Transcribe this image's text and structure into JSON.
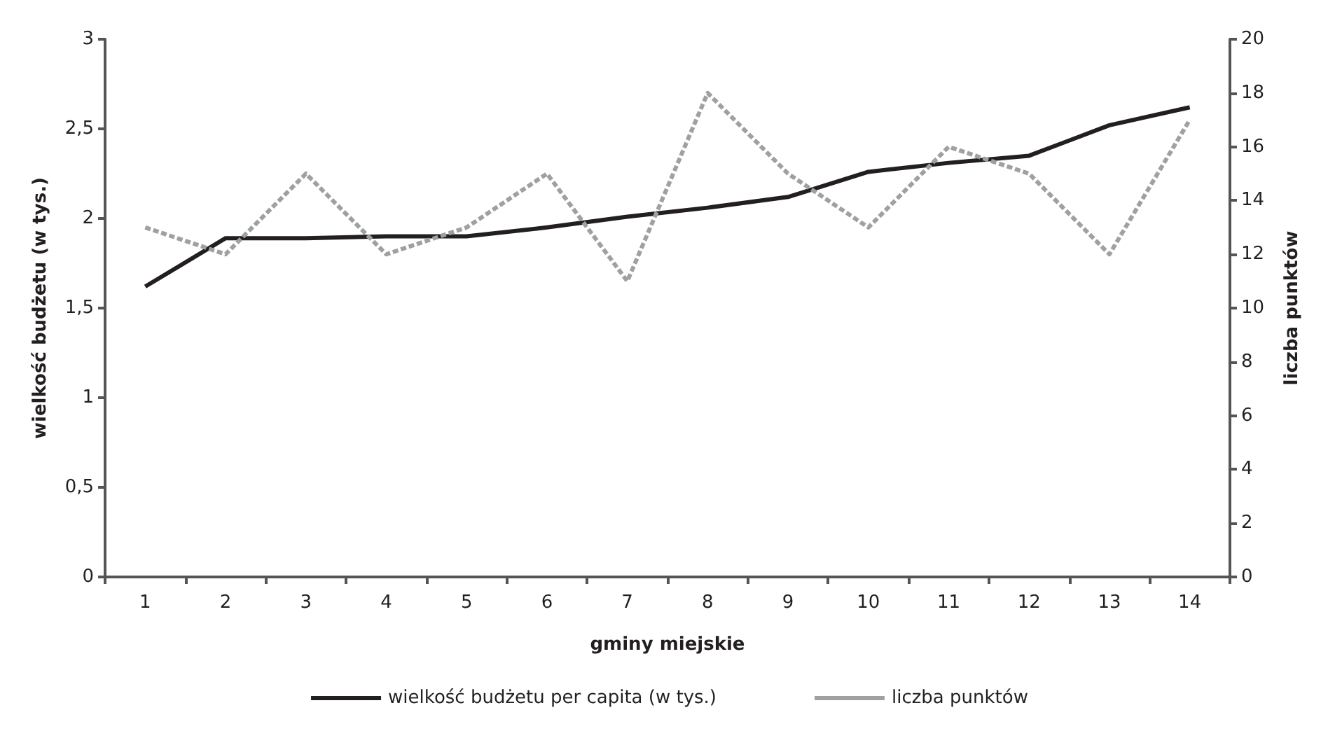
{
  "chart_data": {
    "type": "line",
    "xlabel": "gminy miejskie",
    "ylabel": "wielkość budżetu (w tys.)",
    "y2label": "liczba punktów",
    "categories": [
      "1",
      "2",
      "3",
      "4",
      "5",
      "6",
      "7",
      "8",
      "9",
      "10",
      "11",
      "12",
      "13",
      "14"
    ],
    "series": [
      {
        "name": "wielkość budżetu per capita (w tys.)",
        "color": "#231f20",
        "line_style": "solid",
        "values": [
          1.62,
          1.89,
          1.89,
          1.9,
          1.9,
          1.95,
          2.01,
          2.06,
          2.12,
          2.26,
          2.31,
          2.35,
          2.52,
          2.62
        ]
      },
      {
        "name": "liczba punktów",
        "color": "#a0a0a0",
        "line_style": "dashed",
        "axis": "y2",
        "values": [
          13,
          12,
          15,
          12,
          13,
          15,
          11,
          18,
          15,
          13,
          16,
          15,
          12,
          17
        ]
      }
    ],
    "ylim": [
      0,
      3
    ],
    "yticks": [
      0,
      {
        "value": 0.5,
        "label": "0,5"
      },
      1,
      {
        "value": 1.5,
        "label": "1,5"
      },
      2,
      {
        "value": 2.5,
        "label": "2,5"
      },
      3
    ],
    "y2lim": [
      0,
      20
    ],
    "y2ticks": [
      0,
      2,
      4,
      6,
      8,
      10,
      12,
      14,
      16,
      18,
      20
    ],
    "grid": false,
    "legend": "bottom",
    "marker": "none"
  }
}
